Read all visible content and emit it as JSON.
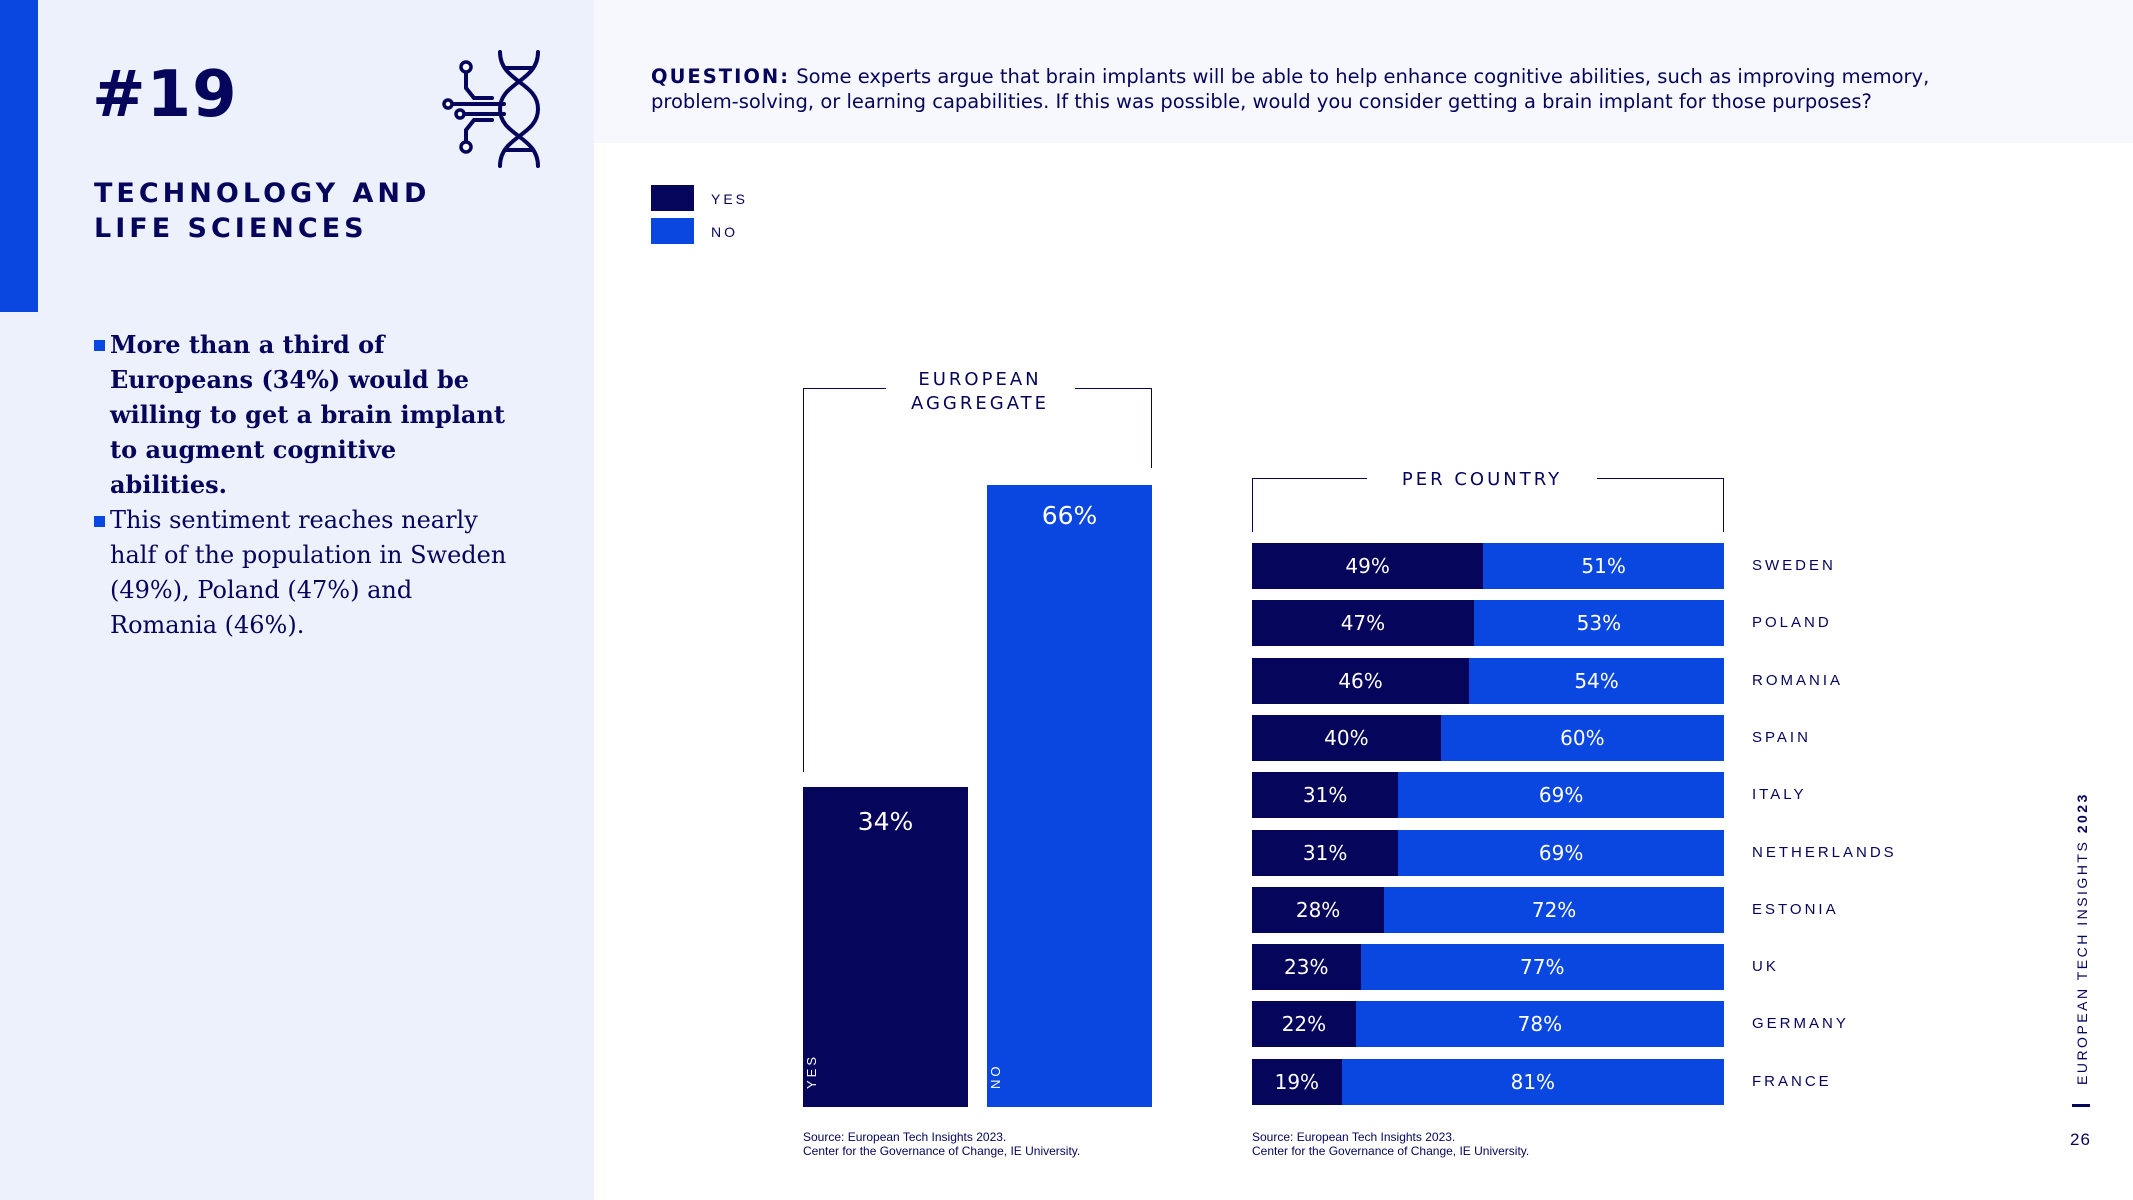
{
  "header": {
    "slide_number": "#19",
    "section_title": "TECHNOLOGY AND LIFE SCIENCES"
  },
  "bullets": [
    "More than a third of Europeans (34%) would be willing to get a brain implant to augment cognitive abilities.",
    "This sentiment reaches nearly half of the population in Sweden (49%), Poland (47%) and Romania (46%)."
  ],
  "question": {
    "label": "QUESTION:",
    "text": "Some experts argue that brain implants will be able to help enhance cognitive abilities, such as improving memory, problem-solving, or learning capabilities. If this was possible, would you consider getting a brain implant for those purposes?"
  },
  "legend": [
    {
      "label": "YES",
      "color": "#05055c"
    },
    {
      "label": "NO",
      "color": "#0a47e0"
    }
  ],
  "chart_data": [
    {
      "type": "bar",
      "title": "EUROPEAN AGGREGATE",
      "categories": [
        "YES",
        "NO"
      ],
      "values": [
        34,
        66
      ],
      "value_labels": [
        "34%",
        "66%"
      ],
      "colors": [
        "#05055c",
        "#0a47e0"
      ],
      "ylim": [
        0,
        100
      ],
      "source": [
        "Source: European Tech Insights 2023.",
        "Center for the Governance of Change, IE University."
      ]
    },
    {
      "type": "bar",
      "orientation": "horizontal",
      "stacked": true,
      "title": "PER COUNTRY",
      "categories": [
        "SWEDEN",
        "POLAND",
        "ROMANIA",
        "SPAIN",
        "ITALY",
        "NETHERLANDS",
        "ESTONIA",
        "UK",
        "GERMANY",
        "FRANCE"
      ],
      "series": [
        {
          "name": "YES",
          "values": [
            49,
            47,
            46,
            40,
            31,
            31,
            28,
            23,
            22,
            19
          ],
          "color": "#05055c"
        },
        {
          "name": "NO",
          "values": [
            51,
            53,
            54,
            60,
            69,
            69,
            72,
            77,
            78,
            81
          ],
          "color": "#0a47e0"
        }
      ],
      "xlim": [
        0,
        100
      ],
      "source": [
        "Source: European Tech Insights 2023.",
        "Center for the Governance of Change, IE University."
      ]
    }
  ],
  "footer": {
    "publication": "EUROPEAN TECH INSIGHTS",
    "year": "2023",
    "page_number": "26"
  }
}
